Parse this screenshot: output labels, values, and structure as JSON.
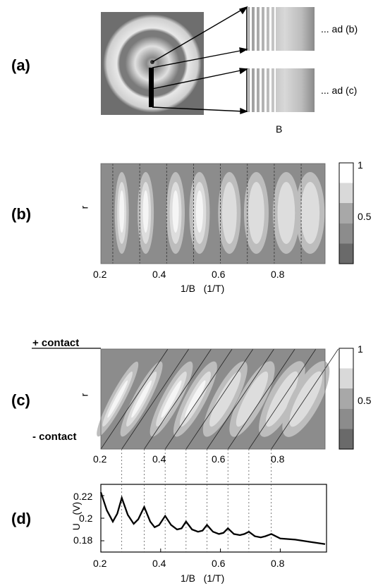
{
  "panels": {
    "a": {
      "label": "(a)",
      "callout_b": "... ad (b)",
      "callout_c": "... ad (c)",
      "x_label": "B"
    },
    "b": {
      "label": "(b)",
      "y_label": "r",
      "x_label": "1/B   (1/T)",
      "x_ticks": [
        "0.2",
        "0.4",
        "0.6",
        "0.8"
      ],
      "colorbar_ticks": [
        "1",
        "0.5"
      ]
    },
    "c": {
      "label": "(c)",
      "y_label": "r",
      "top_contact": "+ contact",
      "bottom_contact": "- contact",
      "x_ticks": [
        "0.2",
        "0.4",
        "0.6",
        "0.8"
      ],
      "colorbar_ticks": [
        "1",
        "0.5"
      ]
    },
    "d": {
      "label": "(d)",
      "y_label": "U   (V)",
      "x_label": "1/B   (1/T)",
      "x_ticks": [
        "0.2",
        "0.4",
        "0.6",
        "0.8"
      ],
      "y_ticks": [
        "0.22",
        "0.2",
        "0.18"
      ]
    }
  },
  "chart_data": [
    {
      "type": "heatmap",
      "panel": "b",
      "xlabel": "1/B   (1/T)",
      "ylabel": "r",
      "xlim": [
        0.2,
        0.95
      ],
      "colorbar_range": [
        0,
        1
      ],
      "oscillation_maxima_1_over_B": [
        0.27,
        0.35,
        0.45,
        0.53,
        0.63,
        0.72,
        0.82,
        0.9
      ],
      "dotted_line_positions": [
        0.24,
        0.33,
        0.42,
        0.51,
        0.6,
        0.69,
        0.78,
        0.87
      ]
    },
    {
      "type": "heatmap",
      "panel": "c",
      "ylabel": "r",
      "xlim": [
        0.2,
        0.95
      ],
      "colorbar_range": [
        0,
        1
      ]
    },
    {
      "type": "line",
      "panel": "d",
      "xlabel": "1/B   (1/T)",
      "ylabel": "U   (V)",
      "xlim": [
        0.2,
        0.95
      ],
      "ylim": [
        0.17,
        0.23
      ],
      "series": [
        {
          "x": [
            0.2,
            0.22,
            0.24,
            0.255,
            0.27,
            0.29,
            0.31,
            0.325,
            0.345,
            0.365,
            0.38,
            0.395,
            0.415,
            0.435,
            0.455,
            0.47,
            0.485,
            0.505,
            0.525,
            0.54,
            0.555,
            0.575,
            0.595,
            0.61,
            0.625,
            0.645,
            0.665,
            0.68,
            0.695,
            0.715,
            0.735,
            0.75,
            0.77,
            0.8,
            0.85,
            0.9,
            0.95
          ],
          "values": [
            0.223,
            0.207,
            0.197,
            0.204,
            0.218,
            0.203,
            0.195,
            0.199,
            0.21,
            0.197,
            0.192,
            0.194,
            0.202,
            0.194,
            0.19,
            0.191,
            0.197,
            0.19,
            0.188,
            0.189,
            0.194,
            0.188,
            0.186,
            0.187,
            0.191,
            0.186,
            0.185,
            0.186,
            0.188,
            0.184,
            0.183,
            0.184,
            0.186,
            0.182,
            0.181,
            0.179,
            0.177
          ]
        }
      ]
    }
  ]
}
